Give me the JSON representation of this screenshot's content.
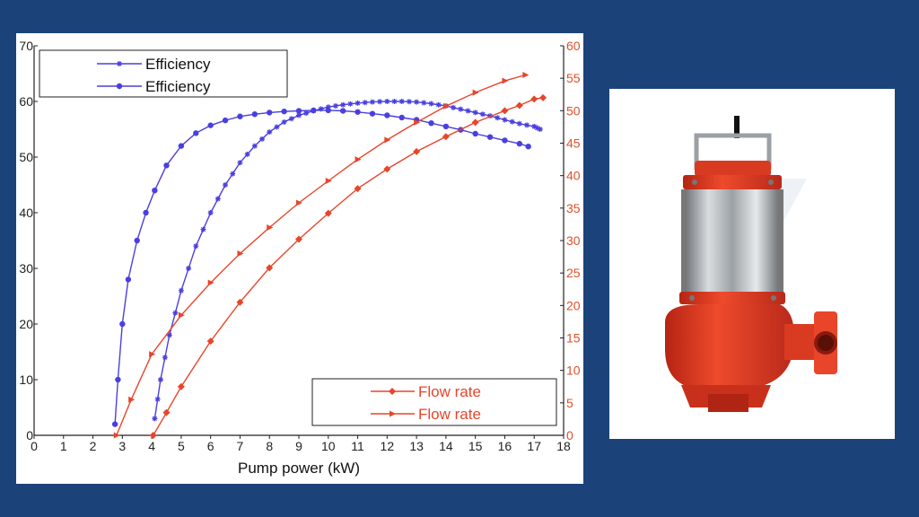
{
  "colors": {
    "background": "#1c4379",
    "efficiency": "#4a3fe0",
    "flow": "#e8452a",
    "right_axis": "#e0502a"
  },
  "chart_data": {
    "type": "line",
    "title": "",
    "xlabel": "Pump power (kW)",
    "ylabel": "",
    "y2label": "",
    "xlim": [
      0,
      18
    ],
    "ylim": [
      0,
      70
    ],
    "y2lim": [
      0,
      60
    ],
    "x_ticks": [
      "0",
      "1",
      "2",
      "3",
      "4",
      "5",
      "6",
      "7",
      "8",
      "9",
      "10",
      "11",
      "12",
      "13",
      "14",
      "15",
      "16",
      "17",
      "18"
    ],
    "y_ticks": [
      "0",
      "10",
      "20",
      "30",
      "40",
      "50",
      "60",
      "70"
    ],
    "y2_ticks": [
      "0",
      "5",
      "10",
      "15",
      "20",
      "25",
      "30",
      "35",
      "40",
      "45",
      "50",
      "55",
      "60"
    ],
    "grid": false,
    "legend_top": {
      "placement": "top-left",
      "entries": [
        "Efficiency",
        "Efficiency"
      ]
    },
    "legend_bottom": {
      "placement": "bottom-right",
      "entries": [
        "Flow rate",
        "Flow rate"
      ]
    },
    "series": [
      {
        "name": "Efficiency",
        "axis": "left",
        "marker": "star",
        "x": [
          4.1,
          4.3,
          4.6,
          5.0,
          5.5,
          6.0,
          6.5,
          7.0,
          7.5,
          8.0,
          8.5,
          9.0,
          9.5,
          10.0,
          10.5,
          11.0,
          11.5,
          12.0,
          12.5,
          13.0,
          13.5,
          14.0,
          14.5,
          15.0,
          15.5,
          16.0,
          16.5,
          17.0,
          17.2
        ],
        "y": [
          3,
          10,
          18,
          26,
          34,
          40,
          45,
          49,
          52,
          54.5,
          56.3,
          57.5,
          58.3,
          59.0,
          59.4,
          59.7,
          59.9,
          60.0,
          60.0,
          59.9,
          59.6,
          59.2,
          58.6,
          58.0,
          57.4,
          56.7,
          56.0,
          55.5,
          55.0
        ]
      },
      {
        "name": "Efficiency",
        "axis": "left",
        "marker": "circle",
        "x": [
          2.75,
          2.85,
          3.0,
          3.2,
          3.5,
          3.8,
          4.1,
          4.5,
          5.0,
          5.5,
          6.0,
          6.5,
          7.0,
          7.5,
          8.0,
          8.5,
          9.0,
          9.5,
          10.0,
          10.5,
          11.0,
          11.5,
          12.0,
          12.5,
          13.0,
          13.5,
          14.0,
          14.5,
          15.0,
          15.5,
          16.0,
          16.5,
          16.8
        ],
        "y": [
          2,
          10,
          20,
          28,
          35,
          40,
          44,
          48.5,
          52,
          54.3,
          55.7,
          56.6,
          57.3,
          57.7,
          58.0,
          58.2,
          58.3,
          58.4,
          58.4,
          58.3,
          58.1,
          57.8,
          57.5,
          57.1,
          56.7,
          56.1,
          55.5,
          54.9,
          54.2,
          53.6,
          53.0,
          52.4,
          51.9
        ]
      },
      {
        "name": "Flow rate",
        "axis": "right",
        "marker": "diamond",
        "x": [
          4.05,
          4.5,
          5.0,
          6.0,
          7.0,
          8.0,
          9.0,
          10.0,
          11.0,
          12.0,
          13.0,
          14.0,
          15.0,
          16.0,
          16.5,
          17.0,
          17.3
        ],
        "y": [
          0,
          3.5,
          7.5,
          14.5,
          20.5,
          25.8,
          30.2,
          34.2,
          38.0,
          41.0,
          43.7,
          46.0,
          48.2,
          50.0,
          50.8,
          51.8,
          52.0
        ]
      },
      {
        "name": "Flow rate",
        "axis": "right",
        "marker": "triangle",
        "x": [
          2.8,
          3.3,
          4.0,
          5.0,
          6.0,
          7.0,
          8.0,
          9.0,
          10.0,
          11.0,
          12.0,
          13.0,
          14.0,
          15.0,
          16.0,
          16.7
        ],
        "y": [
          0,
          5.5,
          12.5,
          18.5,
          23.5,
          28.0,
          32.0,
          35.8,
          39.2,
          42.5,
          45.5,
          48.2,
          50.7,
          52.8,
          54.6,
          55.5
        ]
      }
    ]
  },
  "pump_image": {
    "description_icon": "submersible-pump-photo",
    "body_color": "#e03a22",
    "motor_color": "#b8bcc0"
  }
}
